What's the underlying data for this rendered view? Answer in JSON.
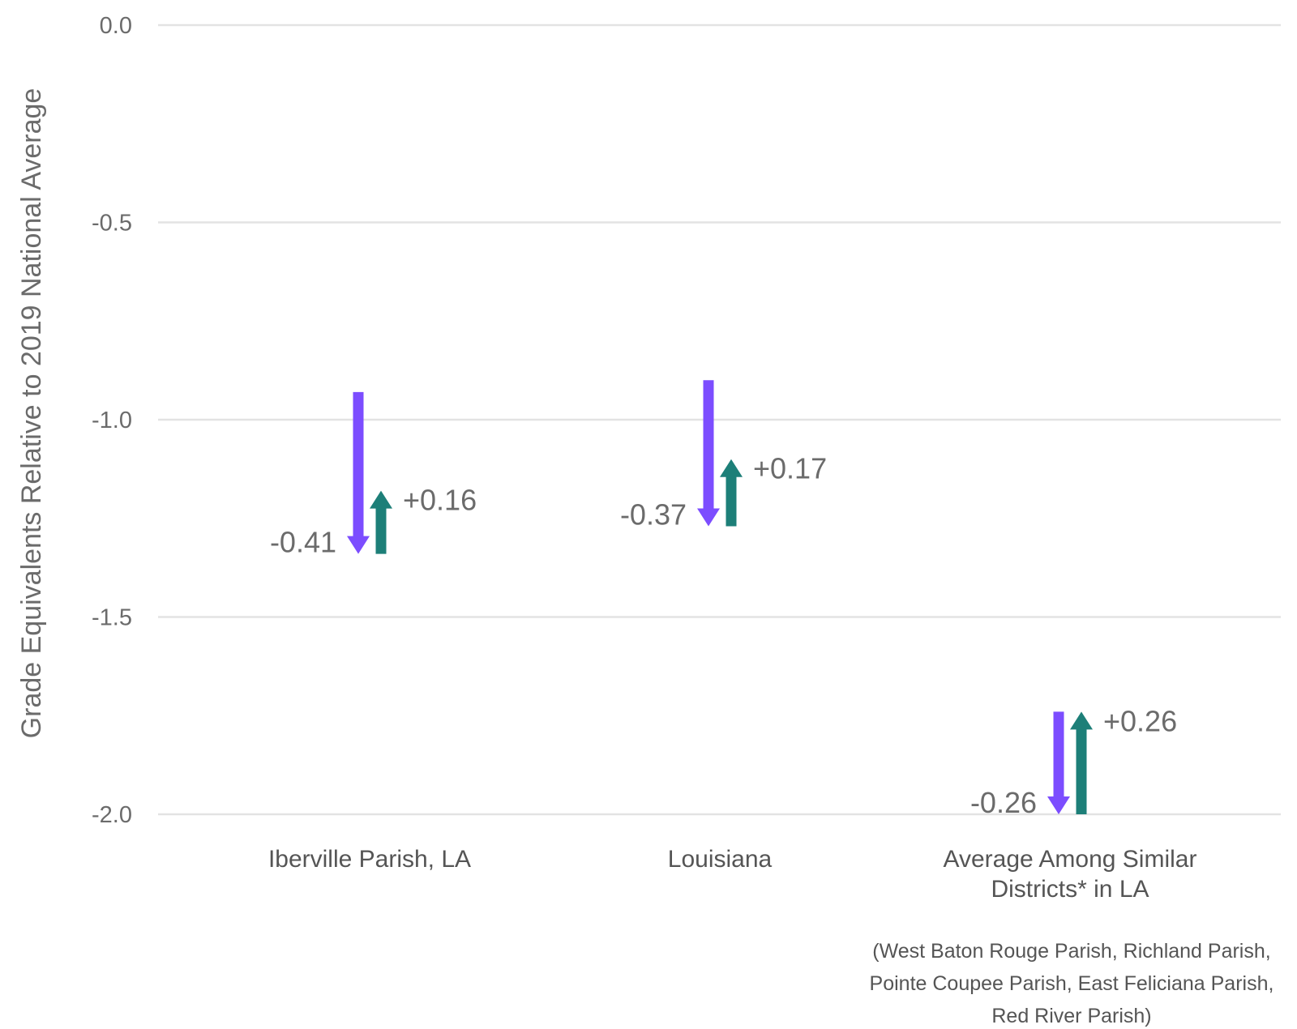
{
  "chart_data": {
    "type": "arrow",
    "ylabel": "Grade Equivalents Relative to 2019 National Average",
    "ylim": [
      -2.0,
      0.0
    ],
    "yticks": [
      0.0,
      -0.5,
      -1.0,
      -1.5,
      -2.0
    ],
    "ytick_labels": [
      "0.0",
      "-0.5",
      "-1.0",
      "-1.5",
      "-2.0"
    ],
    "grid": true,
    "categories": [
      {
        "label_lines": [
          "Iberville Parish, LA"
        ],
        "decline": {
          "start": -0.93,
          "end": -1.34,
          "label": "-0.41"
        },
        "recovery": {
          "start": -1.34,
          "end": -1.18,
          "label": "+0.16"
        }
      },
      {
        "label_lines": [
          "Louisiana"
        ],
        "decline": {
          "start": -0.9,
          "end": -1.27,
          "label": "-0.37"
        },
        "recovery": {
          "start": -1.27,
          "end": -1.1,
          "label": "+0.17"
        }
      },
      {
        "label_lines": [
          "Average Among Similar",
          "Districts* in LA"
        ],
        "decline": {
          "start": -1.74,
          "end": -2.0,
          "label": "-0.26"
        },
        "recovery": {
          "start": -2.0,
          "end": -1.74,
          "label": "+0.26"
        }
      }
    ],
    "colors": {
      "decline": "#7c4dff",
      "recovery": "#1d7f78"
    },
    "footnote_lines": [
      "(West Baton Rouge Parish, Richland Parish,",
      "Pointe Coupee Parish, East Feliciana Parish,",
      "Red River Parish)"
    ]
  }
}
